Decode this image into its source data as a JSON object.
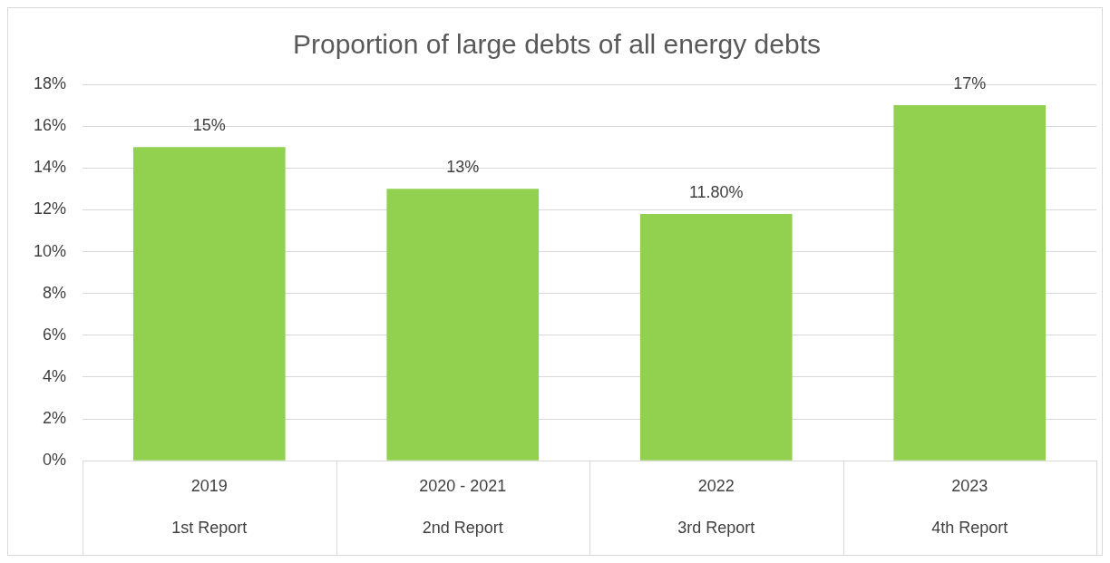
{
  "chart_data": {
    "type": "bar",
    "title": "Proportion of large debts of all energy debts",
    "categories": [
      "2019\n1st Report",
      "2020 - 2021\n2nd Report",
      "2022\n3rd Report",
      "2023\n4th Report"
    ],
    "values": [
      15,
      13,
      11.8,
      17
    ],
    "color": "#92d050",
    "value_labels": [
      "15%",
      "13%",
      "11.80%",
      "17%"
    ],
    "ylim": [
      0,
      18
    ],
    "yticks": [
      {
        "value": 0,
        "label": "0%"
      },
      {
        "value": 2,
        "label": "2%"
      },
      {
        "value": 4,
        "label": "4%"
      },
      {
        "value": 6,
        "label": "6%"
      },
      {
        "value": 8,
        "label": "8%"
      },
      {
        "value": 10,
        "label": "10%"
      },
      {
        "value": 12,
        "label": "12%"
      },
      {
        "value": 14,
        "label": "14%"
      },
      {
        "value": 16,
        "label": "16%"
      },
      {
        "value": 18,
        "label": "18%"
      }
    ],
    "grid": "y",
    "legend": false
  }
}
